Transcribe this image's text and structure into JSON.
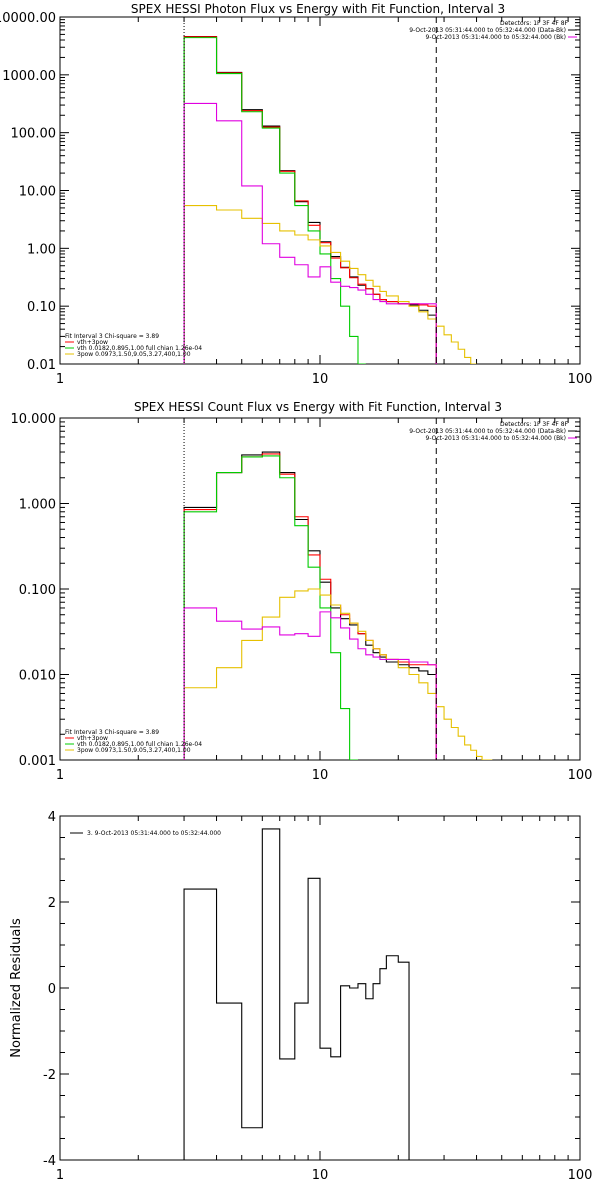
{
  "colors": {
    "data": "#000000",
    "total": "#ff0000",
    "thermal": "#00cc00",
    "powerlaw": "#e6c000",
    "background": "#e000e0",
    "axis": "#000000"
  },
  "chart_data": [
    {
      "type": "line",
      "title": "SPEX HESSI Photon Flux vs Energy with Fit Function, Interval 3",
      "xlog": true,
      "ylog": true,
      "xlim": [
        1,
        100
      ],
      "ylim": [
        0.01,
        10000
      ],
      "x_ticks": [
        "1",
        "10",
        "100"
      ],
      "x_tick_values": [
        1,
        10,
        100
      ],
      "y_ticks": [
        "0.01",
        "0.10",
        "1.00",
        "10.00",
        "100.00",
        "1000.00",
        "10000.00"
      ],
      "y_tick_values": [
        0.01,
        0.1,
        1,
        10,
        100,
        1000,
        10000
      ],
      "energy_edges": [
        3,
        4,
        5,
        6,
        7,
        8,
        9,
        10,
        11,
        12,
        13,
        14,
        15,
        16,
        17,
        18,
        20,
        22,
        24,
        26,
        28
      ],
      "series": [
        {
          "key": "data",
          "color_key": "data",
          "values": [
            4600,
            1100,
            250,
            130,
            22,
            6.4,
            2.8,
            1.3,
            0.72,
            0.47,
            0.32,
            0.23,
            0.2,
            0.16,
            0.13,
            0.12,
            0.11,
            0.105,
            0.085,
            0.07
          ]
        },
        {
          "key": "total",
          "color_key": "total",
          "values": [
            4550,
            1080,
            240,
            125,
            21.5,
            6.6,
            2.5,
            1.25,
            0.68,
            0.46,
            0.31,
            0.24,
            0.2,
            0.16,
            0.13,
            0.12,
            0.11,
            0.11,
            0.105,
            0.1
          ]
        },
        {
          "key": "thermal",
          "color_key": "thermal",
          "values": [
            4400,
            1050,
            230,
            120,
            20,
            5.5,
            2.0,
            0.8,
            0.3,
            0.1,
            0.03,
            0.005
          ]
        },
        {
          "key": "powerlaw",
          "color_key": "powerlaw",
          "edges_override": [
            3,
            4,
            5,
            6,
            7,
            8,
            9,
            10,
            11,
            12,
            13,
            14,
            15,
            16,
            17,
            18,
            20,
            22,
            24,
            26,
            28,
            30,
            32,
            34,
            36,
            38,
            40
          ],
          "values": [
            5.5,
            4.6,
            3.3,
            2.7,
            2.0,
            1.7,
            1.4,
            1.1,
            0.85,
            0.6,
            0.45,
            0.35,
            0.28,
            0.22,
            0.18,
            0.15,
            0.12,
            0.1,
            0.08,
            0.06,
            0.045,
            0.032,
            0.024,
            0.018,
            0.013,
            0.01
          ]
        },
        {
          "key": "background",
          "color_key": "background",
          "values": [
            320,
            160,
            12,
            1.2,
            0.7,
            0.52,
            0.32,
            0.48,
            0.26,
            0.22,
            0.21,
            0.19,
            0.16,
            0.13,
            0.12,
            0.11,
            0.11,
            0.11,
            0.11,
            0.11
          ]
        }
      ],
      "markers": {
        "dotted_x": 3,
        "dashed_x": 28
      },
      "legend_top": {
        "header": "Detectors: 1F 3F 4F 8F",
        "lines": [
          {
            "text": "9-Oct-2013 05:31:44.000 to 05:32:44.000 (Data-Bk)",
            "color_key": "data"
          },
          {
            "text": "9-Oct-2013 05:31:44.000 to 05:32:44.000 (Bk)",
            "color_key": "background"
          }
        ]
      },
      "legend_bottom": {
        "header": "Fit Interval 3   Chi-square = 3.89",
        "lines": [
          {
            "text": "vth+3pow",
            "color_key": "total"
          },
          {
            "text": "vth 0.0182,0.895,1.00  full chian 1.26e-04",
            "color_key": "thermal"
          },
          {
            "text": "3pow 0.0973,1.50,9.05,3.27,400,1.00",
            "color_key": "powerlaw"
          }
        ]
      }
    },
    {
      "type": "line",
      "title": "SPEX HESSI Count Flux vs Energy with Fit Function, Interval 3",
      "xlog": true,
      "ylog": true,
      "xlim": [
        1,
        100
      ],
      "ylim": [
        0.001,
        10
      ],
      "x_ticks": [
        "1",
        "10",
        "100"
      ],
      "x_tick_values": [
        1,
        10,
        100
      ],
      "y_ticks": [
        "0.001",
        "0.010",
        "0.100",
        "1.000",
        "10.000"
      ],
      "y_tick_values": [
        0.001,
        0.01,
        0.1,
        1,
        10
      ],
      "energy_edges": [
        3,
        4,
        5,
        6,
        7,
        8,
        9,
        10,
        11,
        12,
        13,
        14,
        15,
        16,
        17,
        18,
        20,
        22,
        24,
        26,
        28
      ],
      "series": [
        {
          "key": "data",
          "color_key": "data",
          "values": [
            0.9,
            2.3,
            3.7,
            4.0,
            2.3,
            0.65,
            0.28,
            0.12,
            0.06,
            0.045,
            0.038,
            0.03,
            0.022,
            0.018,
            0.016,
            0.014,
            0.013,
            0.012,
            0.011,
            0.01
          ]
        },
        {
          "key": "total",
          "color_key": "total",
          "values": [
            0.85,
            2.3,
            3.5,
            3.8,
            2.2,
            0.7,
            0.25,
            0.13,
            0.065,
            0.05,
            0.04,
            0.03,
            0.025,
            0.02,
            0.017,
            0.015,
            0.014,
            0.013,
            0.013,
            0.013
          ]
        },
        {
          "key": "thermal",
          "color_key": "thermal",
          "values": [
            0.8,
            2.3,
            3.5,
            3.6,
            2.0,
            0.55,
            0.18,
            0.06,
            0.018,
            0.004,
            0.0008
          ]
        },
        {
          "key": "powerlaw",
          "color_key": "powerlaw",
          "edges_override": [
            3,
            4,
            5,
            6,
            7,
            8,
            9,
            10,
            11,
            12,
            13,
            14,
            15,
            16,
            17,
            18,
            20,
            22,
            24,
            26,
            28,
            30,
            32,
            34,
            36,
            38,
            40,
            42,
            44,
            46
          ],
          "values": [
            0.007,
            0.012,
            0.025,
            0.047,
            0.08,
            0.095,
            0.1,
            0.085,
            0.065,
            0.052,
            0.04,
            0.032,
            0.025,
            0.02,
            0.017,
            0.015,
            0.012,
            0.01,
            0.008,
            0.006,
            0.0042,
            0.003,
            0.0024,
            0.0019,
            0.0015,
            0.0013,
            0.0011,
            0.0009,
            0.0008
          ]
        },
        {
          "key": "background",
          "color_key": "background",
          "values": [
            0.06,
            0.042,
            0.034,
            0.036,
            0.029,
            0.03,
            0.028,
            0.054,
            0.046,
            0.035,
            0.026,
            0.02,
            0.017,
            0.016,
            0.015,
            0.015,
            0.015,
            0.014,
            0.014,
            0.013
          ]
        }
      ],
      "markers": {
        "dotted_x": 3,
        "dashed_x": 28
      },
      "legend_top": {
        "header": "Detectors: 1F 3F 4F 8F",
        "lines": [
          {
            "text": "9-Oct-2013 05:31:44.000 to 05:32:44.000 (Data-Bk)",
            "color_key": "data"
          },
          {
            "text": "9-Oct-2013 05:31:44.000 to 05:32:44.000 (Bk)",
            "color_key": "background"
          }
        ]
      },
      "legend_bottom": {
        "header": "Fit Interval 3   Chi-square = 3.89",
        "lines": [
          {
            "text": "vth+3pow",
            "color_key": "total"
          },
          {
            "text": "vth 0.0182,0.895,1.00  full chian 1.26e-04",
            "color_key": "thermal"
          },
          {
            "text": "3pow 0.0973,1.50,9.05,3.27,400,1.00",
            "color_key": "powerlaw"
          }
        ]
      }
    },
    {
      "type": "line",
      "title": "",
      "xlog": true,
      "ylog": false,
      "xlim": [
        1,
        100
      ],
      "ylim": [
        -4,
        4
      ],
      "ylabel": "Normalized Residuals",
      "x_ticks": [
        "1",
        "10",
        "100"
      ],
      "x_tick_values": [
        1,
        10,
        100
      ],
      "y_ticks": [
        "-4",
        "-2",
        "0",
        "2",
        "4"
      ],
      "y_tick_values": [
        -4,
        -2,
        0,
        2,
        4
      ],
      "energy_edges": [
        3,
        4,
        5,
        6,
        7,
        8,
        9,
        10,
        11,
        12,
        13,
        14,
        15,
        16,
        17,
        18,
        20,
        22,
        24,
        26,
        28
      ],
      "series": [
        {
          "key": "residuals",
          "color_key": "data",
          "baseline": -4,
          "values": [
            2.3,
            -0.35,
            -3.25,
            3.7,
            -1.65,
            -0.35,
            2.55,
            -1.4,
            -1.6,
            0.05,
            0.0,
            0.1,
            -0.25,
            0.1,
            0.45,
            0.75,
            0.6
          ]
        }
      ],
      "legend_top_left": {
        "text": "3.  9-Oct-2013 05:31:44.000 to 05:32:44.000"
      }
    }
  ]
}
